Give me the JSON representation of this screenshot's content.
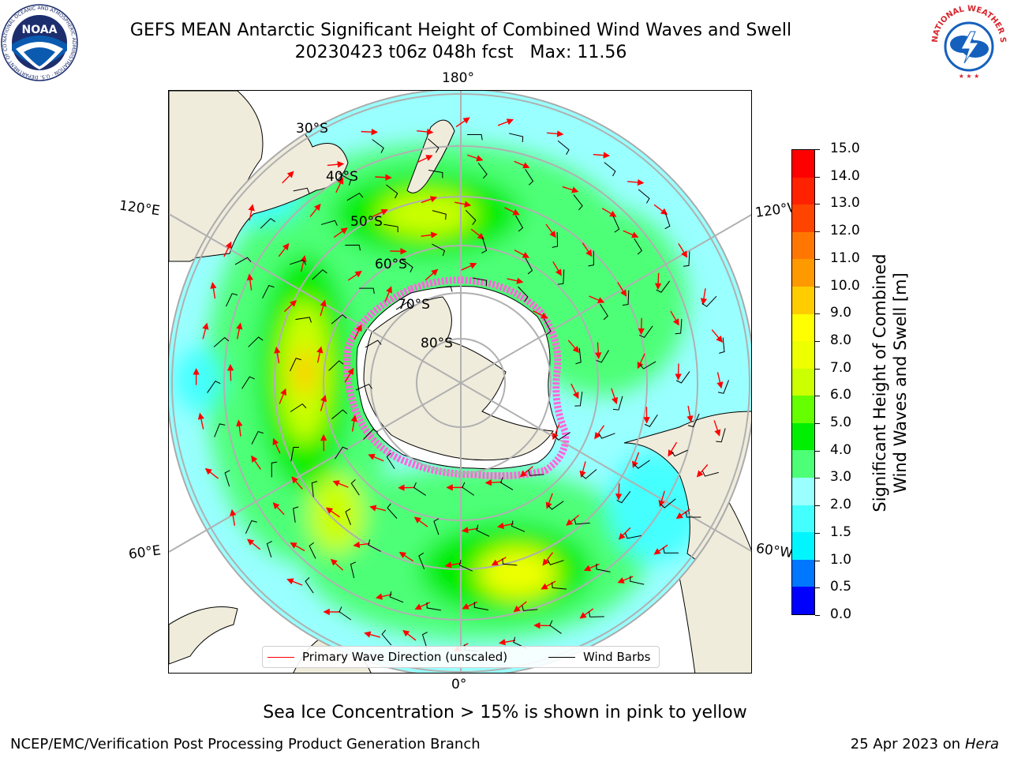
{
  "header": {
    "title_line1": "GEFS MEAN Antarctic Significant Height of Combined Wind Waves and Swell",
    "title_line2": "20230423 t06z 048h fcst   Max: 11.56"
  },
  "logos": {
    "left": {
      "name": "NOAA",
      "ring_text": "NATIONAL OCEANIC AND ATMOSPHERIC ADMINISTRATION · U.S. DEPARTMENT OF COMMERCE",
      "colors": {
        "blue": "#0a5bb0",
        "dark": "#1d2e6e"
      }
    },
    "right": {
      "ring_text": "NATIONAL WEATHER SERVICE",
      "colors": {
        "red": "#d7262e",
        "blue": "#1560bd"
      }
    }
  },
  "map": {
    "longitude_labels": {
      "top": "180°",
      "bottom": "0°",
      "upper_left": "120°E",
      "upper_right": "120°W",
      "lower_left": "60°E",
      "lower_right": "60°W"
    },
    "latitude_labels": [
      "30°S",
      "40°S",
      "50°S",
      "60°S",
      "70°S",
      "80°S"
    ],
    "colors": {
      "land": "#efecdc",
      "ice": "#ff66dd",
      "grid": "#b0b0b0"
    }
  },
  "legend": {
    "wave_direction_label": "Primary Wave Direction (unscaled)",
    "wind_barbs_label": "Wind Barbs",
    "wave_color": "#ff0000",
    "barb_color": "#000000"
  },
  "colorbar": {
    "title_line1": "Significant Height of Combined",
    "title_line2": "Wind Waves and Swell [m]",
    "tick_labels": [
      "0.0",
      "0.5",
      "1.0",
      "1.5",
      "2.0",
      "3.0",
      "4.0",
      "5.0",
      "6.0",
      "7.0",
      "8.0",
      "9.0",
      "10.0",
      "11.0",
      "12.0",
      "13.0",
      "14.0",
      "15.0"
    ],
    "colors": [
      "#0000ff",
      "#0077ff",
      "#00f5ff",
      "#44ffff",
      "#99ffff",
      "#4dff77",
      "#00ee00",
      "#66ff00",
      "#ccff00",
      "#eeff00",
      "#ffff00",
      "#ffcc00",
      "#ff9900",
      "#ff7700",
      "#ff4400",
      "#ff2200",
      "#ff0000"
    ]
  },
  "footer": {
    "note": "Sea Ice Concentration > 15% is shown in pink to yellow",
    "left": "NCEP/EMC/Verification Post Processing Product Generation Branch",
    "right_date": "25 Apr 2023 on",
    "right_host": "Hera"
  }
}
